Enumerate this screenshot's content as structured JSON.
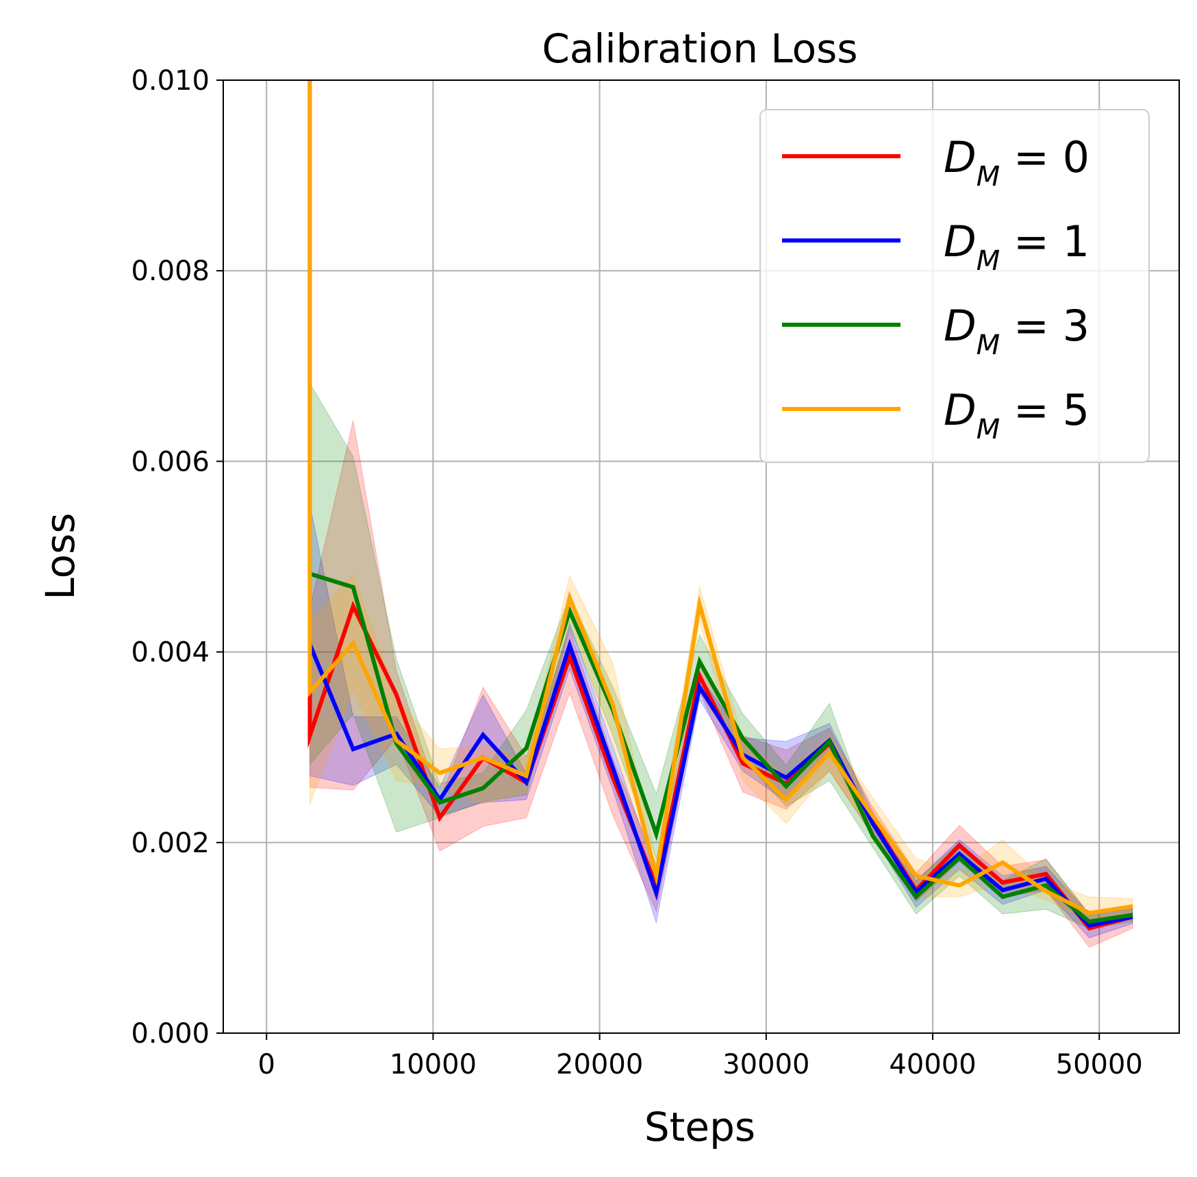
{
  "chart_data": {
    "type": "line",
    "title": "Calibration Loss",
    "xlabel": "Steps",
    "ylabel": "Loss",
    "xlim": [
      -2600,
      54800
    ],
    "ylim": [
      0,
      0.01
    ],
    "xticks": [
      0,
      10000,
      20000,
      30000,
      40000,
      50000
    ],
    "xtick_labels": [
      "0",
      "10000",
      "20000",
      "30000",
      "40000",
      "50000"
    ],
    "yticks": [
      0,
      0.002,
      0.004,
      0.006,
      0.008,
      0.01
    ],
    "ytick_labels": [
      "0.000",
      "0.002",
      "0.004",
      "0.006",
      "0.008",
      "0.010"
    ],
    "grid": true,
    "legend_position": "top-right",
    "x": [
      2600,
      5200,
      7800,
      10400,
      13000,
      15600,
      18200,
      20800,
      23400,
      26000,
      28600,
      31200,
      33800,
      36400,
      39000,
      41600,
      44200,
      46800,
      49400,
      52000
    ],
    "series": [
      {
        "name": "D_M = 0",
        "label_main": "D",
        "label_sub": "M",
        "label_rest": " = 0",
        "color": "#ff0000",
        "start": 0.0105,
        "values": [
          0.00312,
          0.00448,
          0.00355,
          0.00226,
          0.00289,
          0.00263,
          0.00395,
          0.00268,
          0.00155,
          0.00375,
          0.00283,
          0.00262,
          0.00304,
          0.00222,
          0.0015,
          0.00197,
          0.00158,
          0.00167,
          0.0011,
          0.00122
        ],
        "lower": [
          0.00258,
          0.00255,
          0.0031,
          0.00191,
          0.00217,
          0.00226,
          0.00357,
          0.00228,
          0.00128,
          0.00359,
          0.00253,
          0.00235,
          0.00275,
          0.00207,
          0.00138,
          0.0018,
          0.00143,
          0.0015,
          0.0009,
          0.0011
        ],
        "upper": [
          0.00445,
          0.00643,
          0.0038,
          0.00244,
          0.00363,
          0.0029,
          0.00424,
          0.00287,
          0.00178,
          0.0039,
          0.00312,
          0.00297,
          0.0032,
          0.00237,
          0.00168,
          0.00218,
          0.00175,
          0.00182,
          0.00125,
          0.00135
        ]
      },
      {
        "name": "D_M = 1",
        "label_main": "D",
        "label_sub": "M",
        "label_rest": " = 1",
        "color": "#0000ff",
        "start": 0.0105,
        "values": [
          0.00408,
          0.00298,
          0.00314,
          0.00245,
          0.00313,
          0.00263,
          0.00407,
          0.00278,
          0.00147,
          0.00363,
          0.00292,
          0.00268,
          0.00307,
          0.0022,
          0.00148,
          0.00188,
          0.0015,
          0.00162,
          0.00113,
          0.00122
        ],
        "lower": [
          0.0027,
          0.0026,
          0.00282,
          0.00228,
          0.00242,
          0.00245,
          0.00382,
          0.00255,
          0.00116,
          0.0035,
          0.00275,
          0.00243,
          0.00295,
          0.00208,
          0.00132,
          0.00172,
          0.00135,
          0.0015,
          0.001,
          0.00115
        ],
        "upper": [
          0.00555,
          0.00332,
          0.00332,
          0.00258,
          0.00355,
          0.00272,
          0.0043,
          0.003,
          0.00168,
          0.00375,
          0.0031,
          0.00306,
          0.00325,
          0.00232,
          0.0016,
          0.00203,
          0.00165,
          0.00175,
          0.00125,
          0.0013
        ]
      },
      {
        "name": "D_M = 3",
        "label_main": "D",
        "label_sub": "M",
        "label_rest": " = 3",
        "color": "#008000",
        "start": 0.0105,
        "values": [
          0.00482,
          0.00468,
          0.00304,
          0.00242,
          0.00257,
          0.00299,
          0.00443,
          0.00339,
          0.00209,
          0.0039,
          0.00309,
          0.00259,
          0.00306,
          0.00207,
          0.00143,
          0.00184,
          0.00143,
          0.00155,
          0.00117,
          0.00124
        ],
        "lower": [
          0.00282,
          0.00335,
          0.00211,
          0.00226,
          0.00243,
          0.0025,
          0.00426,
          0.00312,
          0.00183,
          0.00365,
          0.00288,
          0.00238,
          0.00265,
          0.00195,
          0.00125,
          0.00165,
          0.00125,
          0.0013,
          0.0011,
          0.00117
        ],
        "upper": [
          0.00682,
          0.00605,
          0.00392,
          0.00262,
          0.00273,
          0.00339,
          0.00458,
          0.00363,
          0.00251,
          0.00418,
          0.00335,
          0.00281,
          0.00346,
          0.00219,
          0.0016,
          0.002,
          0.0016,
          0.00183,
          0.00125,
          0.00131
        ]
      },
      {
        "name": "D_M = 5",
        "label_main": "D",
        "label_sub": "M",
        "label_rest": " = 5",
        "color": "#ffa500",
        "start": 0.0105,
        "values": [
          0.00358,
          0.00409,
          0.00307,
          0.00273,
          0.00289,
          0.0027,
          0.00457,
          0.00344,
          0.00165,
          0.0045,
          0.00289,
          0.00245,
          0.00294,
          0.00228,
          0.00165,
          0.00155,
          0.00179,
          0.00149,
          0.00126,
          0.00133
        ],
        "lower": [
          0.0024,
          0.0036,
          0.00265,
          0.00258,
          0.00241,
          0.00253,
          0.00432,
          0.00303,
          0.00148,
          0.00432,
          0.00265,
          0.0022,
          0.00275,
          0.0021,
          0.00143,
          0.00143,
          0.00158,
          0.0014,
          0.00118,
          0.00127
        ],
        "upper": [
          0.00432,
          0.00481,
          0.00353,
          0.00298,
          0.00302,
          0.00287,
          0.0048,
          0.00388,
          0.00181,
          0.00469,
          0.00308,
          0.0027,
          0.00313,
          0.00247,
          0.00183,
          0.0017,
          0.00203,
          0.0016,
          0.00143,
          0.00141
        ]
      }
    ]
  }
}
